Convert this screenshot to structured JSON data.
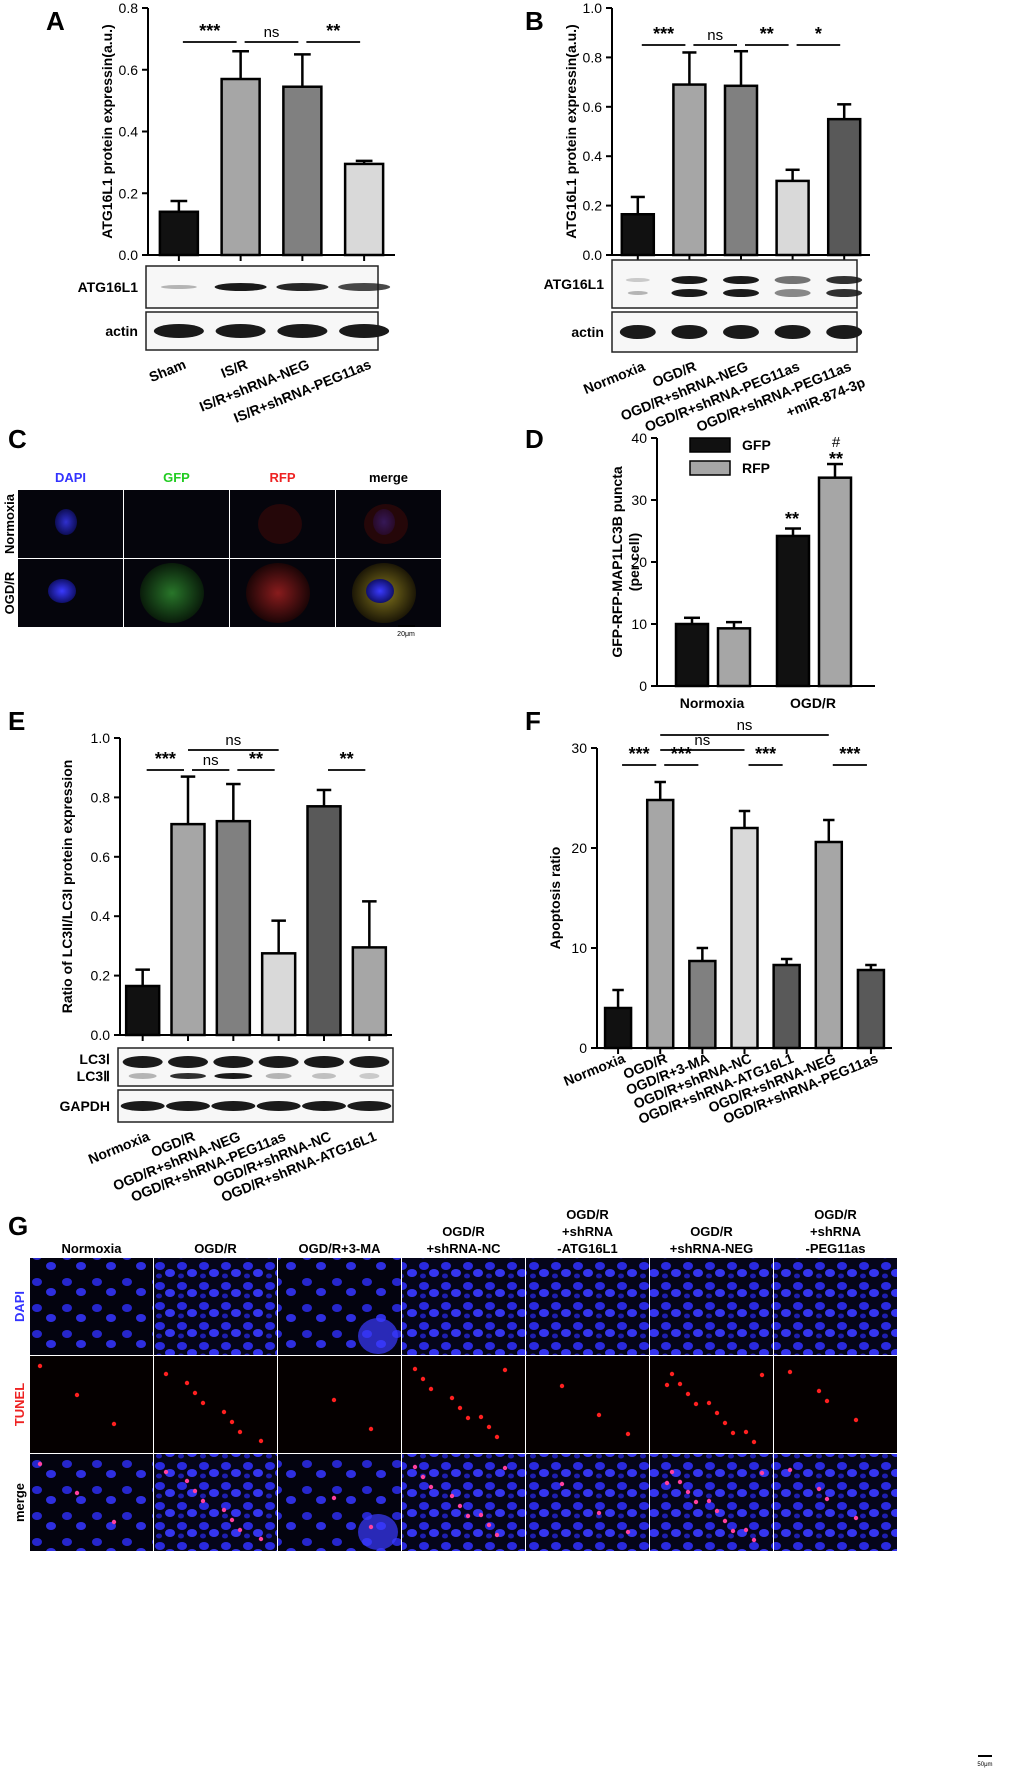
{
  "panels": {
    "A": {
      "letter": "A",
      "ylabel": "ATG16L1 protein expressin(a.u.)",
      "ylim": [
        0,
        0.8
      ],
      "ticks": [
        "0.0",
        "0.2",
        "0.4",
        "0.6",
        "0.8"
      ],
      "categories": [
        "Sham",
        "IS/R",
        "IS/R+shRNA-NEG",
        "IS/R+shRNA-PEG11as"
      ],
      "values": [
        0.14,
        0.57,
        0.545,
        0.295
      ],
      "errors": [
        0.035,
        0.09,
        0.105,
        0.01
      ],
      "colors": [
        "#111111",
        "#a6a6a6",
        "#808080",
        "#d9d9d9"
      ],
      "blots": [
        "ATG16L1",
        "actin"
      ],
      "sig": [
        {
          "from": 0,
          "to": 1,
          "text": "***"
        },
        {
          "from": 1,
          "to": 2,
          "text": "ns"
        },
        {
          "from": 2,
          "to": 3,
          "text": "**"
        }
      ]
    },
    "B": {
      "letter": "B",
      "ylabel": "ATG16L1 protein expressin(a.u.)",
      "ylim": [
        0,
        1.0
      ],
      "ticks": [
        "0.0",
        "0.2",
        "0.4",
        "0.6",
        "0.8",
        "1.0"
      ],
      "categories": [
        "Normoxia",
        "OGD/R",
        "OGD/R+shRNA-NEG",
        "OGD/R+shRNA-PEG11as",
        "OGD/R+shRNA-PEG11as\n+miR-874-3p"
      ],
      "values": [
        0.165,
        0.69,
        0.685,
        0.3,
        0.55
      ],
      "errors": [
        0.07,
        0.13,
        0.14,
        0.045,
        0.06
      ],
      "colors": [
        "#111111",
        "#a6a6a6",
        "#808080",
        "#d9d9d9",
        "#595959"
      ],
      "blots": [
        "ATG16L1",
        "actin"
      ],
      "sig": [
        {
          "from": 0,
          "to": 1,
          "text": "***"
        },
        {
          "from": 1,
          "to": 2,
          "text": "ns"
        },
        {
          "from": 2,
          "to": 3,
          "text": "**"
        },
        {
          "from": 3,
          "to": 4,
          "text": "*"
        }
      ]
    },
    "C": {
      "letter": "C",
      "cols": [
        "DAPI",
        "GFP",
        "RFP",
        "merge"
      ],
      "rows": [
        "Normoxia",
        "OGD/R"
      ],
      "scale": "20μm"
    },
    "D": {
      "letter": "D",
      "ylabel": "GFP-RFP-MAP1LC3B puncta\n(per cell)",
      "ylim": [
        0,
        40
      ],
      "ticks": [
        "0",
        "10",
        "20",
        "30",
        "40"
      ],
      "groups": [
        "Normoxia",
        "OGD/R"
      ],
      "series": [
        {
          "name": "GFP",
          "values": [
            10,
            24.2
          ],
          "errors": [
            1,
            1.2
          ],
          "color": "#111111"
        },
        {
          "name": "RFP",
          "values": [
            9.3,
            33.6
          ],
          "errors": [
            1,
            2.2
          ],
          "color": "#a6a6a6"
        }
      ],
      "marks": [
        {
          "group": 1,
          "series": 0,
          "text": "**"
        },
        {
          "group": 1,
          "series": 1,
          "text": "**"
        },
        {
          "group": 1,
          "series": 1,
          "text": "#"
        }
      ]
    },
    "E": {
      "letter": "E",
      "ylabel": "Ratio of LC3II/LC3I protein expression",
      "ylim": [
        0,
        1.0
      ],
      "ticks": [
        "0.0",
        "0.2",
        "0.4",
        "0.6",
        "0.8",
        "1.0"
      ],
      "categories": [
        "Normoxia",
        "OGD/R",
        "OGD/R+shRNA-NEG",
        "OGD/R+shRNA-PEG11as",
        "OGD/R+shRNA-NC",
        "OGD/R+shRNA-ATG16L1"
      ],
      "values": [
        0.165,
        0.71,
        0.72,
        0.275,
        0.77,
        0.295
      ],
      "errors": [
        0.055,
        0.16,
        0.125,
        0.11,
        0.055,
        0.155
      ],
      "colors": [
        "#111111",
        "#a6a6a6",
        "#808080",
        "#d9d9d9",
        "#595959",
        "#a6a6a6"
      ],
      "blots": [
        "LC3Ⅰ",
        "LC3Ⅱ",
        "GAPDH"
      ],
      "sig": [
        {
          "from": 0,
          "to": 1,
          "text": "***",
          "level": 0
        },
        {
          "from": 1,
          "to": 2,
          "text": "ns",
          "level": 0
        },
        {
          "from": 2,
          "to": 3,
          "text": "**",
          "level": 0
        },
        {
          "from": 1,
          "to": 3,
          "text": "ns",
          "level": 1
        },
        {
          "from": 4,
          "to": 5,
          "text": "**",
          "level": 0
        }
      ]
    },
    "F": {
      "letter": "F",
      "ylabel": "Apoptosis ratio",
      "ylim": [
        0,
        30
      ],
      "ticks": [
        "0",
        "10",
        "20",
        "30"
      ],
      "categories": [
        "Normoxia",
        "OGD/R",
        "OGD/R+3-MA",
        "OGD/R+shRNA-NC",
        "OGD/R+shRNA-ATG16L1",
        "OGD/R+shRNA-NEG",
        "OGD/R+shRNA-PEG11as"
      ],
      "values": [
        4,
        24.8,
        8.7,
        22,
        8.3,
        20.6,
        7.8
      ],
      "errors": [
        1.8,
        1.8,
        1.3,
        1.7,
        0.6,
        2.2,
        0.5
      ],
      "colors": [
        "#111111",
        "#a6a6a6",
        "#808080",
        "#d9d9d9",
        "#595959",
        "#a6a6a6",
        "#595959"
      ],
      "sig": [
        {
          "from": 0,
          "to": 1,
          "text": "***",
          "level": 0
        },
        {
          "from": 1,
          "to": 2,
          "text": "***",
          "level": 0
        },
        {
          "from": 1,
          "to": 3,
          "text": "ns",
          "level": 1
        },
        {
          "from": 3,
          "to": 4,
          "text": "***",
          "level": 0
        },
        {
          "from": 1,
          "to": 5,
          "text": "ns",
          "level": 2
        },
        {
          "from": 5,
          "to": 6,
          "text": "***",
          "level": 0
        }
      ]
    },
    "G": {
      "letter": "G",
      "cols": [
        "Normoxia",
        "OGD/R",
        "OGD/R+3-MA",
        "OGD/R\n+shRNA-NC",
        "OGD/R\n+shRNA\n-ATG16L1",
        "OGD/R\n+shRNA-NEG",
        "OGD/R\n+shRNA\n-PEG11as"
      ],
      "rows": [
        "DAPI",
        "TUNEL",
        "merge"
      ],
      "scale": "50μm",
      "tunel_counts": [
        3,
        8,
        2,
        10,
        3,
        12,
        4
      ]
    }
  },
  "chart_data": [
    {
      "type": "bar",
      "panel": "A",
      "ylabel": "ATG16L1 protein expressin(a.u.)",
      "ylim": [
        0,
        0.8
      ],
      "categories": [
        "Sham",
        "IS/R",
        "IS/R+shRNA-NEG",
        "IS/R+shRNA-PEG11as"
      ],
      "values": [
        0.14,
        0.57,
        0.545,
        0.295
      ]
    },
    {
      "type": "bar",
      "panel": "B",
      "ylabel": "ATG16L1 protein expressin(a.u.)",
      "ylim": [
        0,
        1.0
      ],
      "categories": [
        "Normoxia",
        "OGD/R",
        "OGD/R+shRNA-NEG",
        "OGD/R+shRNA-PEG11as",
        "OGD/R+shRNA-PEG11as +miR-874-3p"
      ],
      "values": [
        0.165,
        0.69,
        0.685,
        0.3,
        0.55
      ]
    },
    {
      "type": "bar",
      "panel": "D",
      "ylabel": "GFP-RFP-MAP1LC3B puncta (per cell)",
      "ylim": [
        0,
        40
      ],
      "categories": [
        "Normoxia",
        "OGD/R"
      ],
      "series": [
        {
          "name": "GFP",
          "values": [
            10,
            24.2
          ]
        },
        {
          "name": "RFP",
          "values": [
            9.3,
            33.6
          ]
        }
      ],
      "legend": "top-center"
    },
    {
      "type": "bar",
      "panel": "E",
      "ylabel": "Ratio of LC3II/LC3I protein expression",
      "ylim": [
        0,
        1.0
      ],
      "categories": [
        "Normoxia",
        "OGD/R",
        "OGD/R+shRNA-NEG",
        "OGD/R+shRNA-PEG11as",
        "OGD/R+shRNA-NC",
        "OGD/R+shRNA-ATG16L1"
      ],
      "values": [
        0.165,
        0.71,
        0.72,
        0.275,
        0.77,
        0.295
      ]
    },
    {
      "type": "bar",
      "panel": "F",
      "ylabel": "Apoptosis ratio",
      "ylim": [
        0,
        30
      ],
      "categories": [
        "Normoxia",
        "OGD/R",
        "OGD/R+3-MA",
        "OGD/R+shRNA-NC",
        "OGD/R+shRNA-ATG16L1",
        "OGD/R+shRNA-NEG",
        "OGD/R+shRNA-PEG11as"
      ],
      "values": [
        4,
        24.8,
        8.7,
        22,
        8.3,
        20.6,
        7.8
      ]
    }
  ]
}
